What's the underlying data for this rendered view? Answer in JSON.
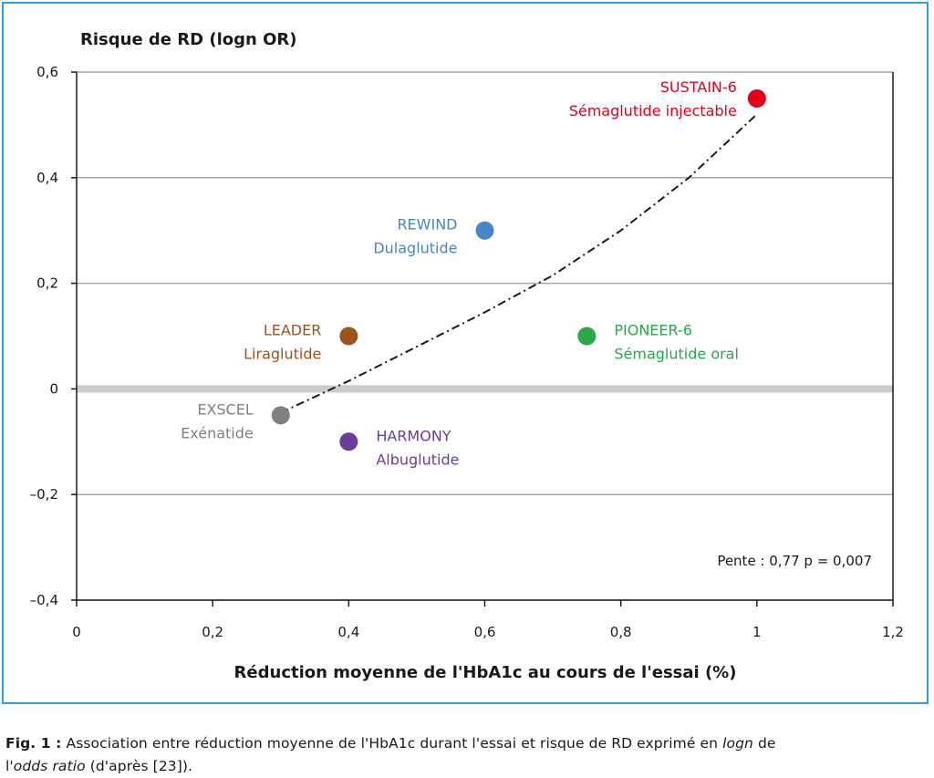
{
  "chart_data": {
    "type": "scatter",
    "title": "Risque de RD (logn OR)",
    "xlabel": "Réduction moyenne de l'HbA1c au cours de l'essai (%)",
    "ylabel": "Risque de RD (logn OR)",
    "xlim": [
      0,
      1.2
    ],
    "ylim": [
      -0.4,
      0.6
    ],
    "x_ticks": [
      0,
      0.2,
      0.4,
      0.6,
      0.8,
      1,
      1.2
    ],
    "x_tick_labels": [
      "0",
      "0,2",
      "0,4",
      "0,6",
      "0,8",
      "1",
      "1,2"
    ],
    "y_ticks": [
      -0.4,
      -0.2,
      0,
      0.2,
      0.4,
      0.6
    ],
    "y_tick_labels": [
      "–0,4",
      "–0,2",
      "0",
      "0,2",
      "0,4",
      "0,6"
    ],
    "grid": "horizontal",
    "zero_line": true,
    "points": [
      {
        "trial": "SUSTAIN-6",
        "drug": "Sémaglutide injectable",
        "x": 1.0,
        "y": 0.55,
        "color": "#e3001b",
        "label_side": "left-above"
      },
      {
        "trial": "REWIND",
        "drug": "Dulaglutide",
        "x": 0.6,
        "y": 0.3,
        "color": "#4a86c5",
        "label_side": "left"
      },
      {
        "trial": "LEADER",
        "drug": "Liraglutide",
        "x": 0.4,
        "y": 0.1,
        "color": "#a0521d",
        "label_side": "left"
      },
      {
        "trial": "PIONEER-6",
        "drug": "Sémaglutide oral",
        "x": 0.75,
        "y": 0.1,
        "color": "#2aa84a",
        "label_side": "right"
      },
      {
        "trial": "EXSCEL",
        "drug": "Exénatide",
        "x": 0.3,
        "y": -0.05,
        "color": "#808080",
        "label_side": "left"
      },
      {
        "trial": "HARMONY",
        "drug": "Albuglutide",
        "x": 0.4,
        "y": -0.1,
        "color": "#6a3d9a",
        "label_side": "right"
      }
    ],
    "trend_curve": {
      "style": "dash-dot",
      "x": [
        0.3,
        0.4,
        0.5,
        0.6,
        0.7,
        0.8,
        0.9,
        1.0
      ],
      "y": [
        -0.045,
        0.015,
        0.08,
        0.145,
        0.215,
        0.3,
        0.4,
        0.52
      ]
    },
    "annotation": "Pente : 0,77 p = 0,007"
  },
  "caption": {
    "fig_label": "Fig. 1 :",
    "line1": " Association entre réduction moyenne de l'HbA1c durant l'essai et risque de RD exprimé en ",
    "logn": "logn",
    "line1_end": " de",
    "line2_pre": "l'",
    "odds": "odds ratio",
    "line2_post": " (d'après [23])."
  },
  "colors": {
    "frame": "#2ea0dc",
    "grid": "#a6a6a6",
    "zero_line": "#cccccc",
    "axis": "#1a1a1a"
  }
}
